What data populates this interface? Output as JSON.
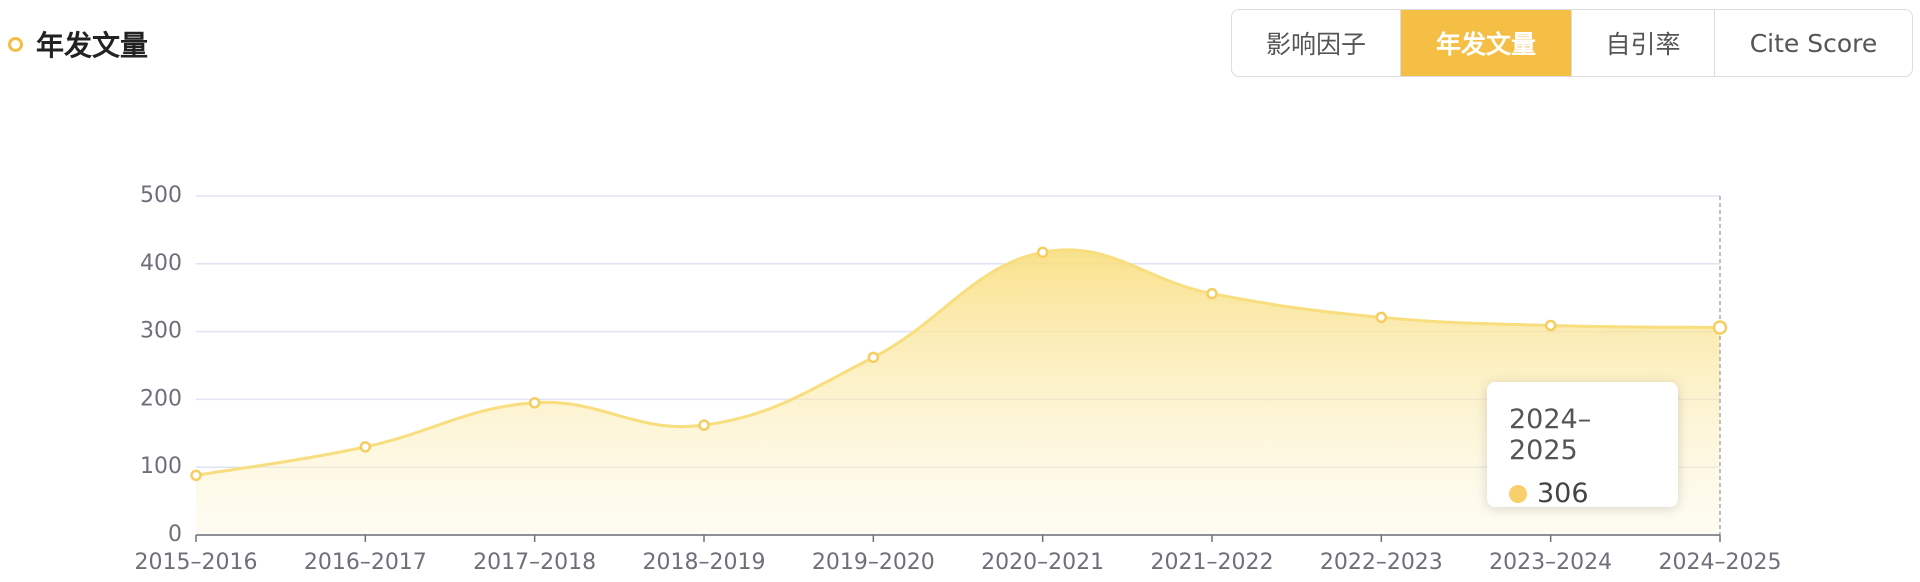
{
  "header": {
    "title": "年发文量",
    "tabs": [
      "影响因子",
      "年发文量",
      "自引率",
      "Cite Score"
    ]
  },
  "chart_data": {
    "type": "line",
    "area": true,
    "color": "#f8de7e",
    "categories": [
      "2015–2016",
      "2016–2017",
      "2017–2018",
      "2018–2019",
      "2019–2020",
      "2020–2021",
      "2021–2022",
      "2022–2023",
      "2023–2024",
      "2024–2025"
    ],
    "values": [
      88,
      130,
      195,
      162,
      262,
      417,
      356,
      321,
      309,
      306
    ],
    "ylim": [
      0,
      500
    ],
    "yticks": [
      0,
      100,
      200,
      300,
      400,
      500
    ],
    "grid": true
  }
}
